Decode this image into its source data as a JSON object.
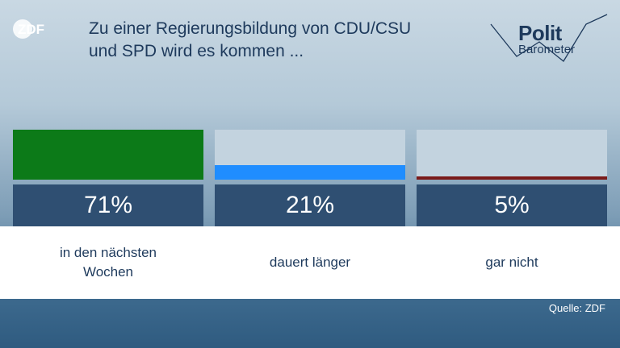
{
  "logo": "ZDF",
  "title_line1": "Zu einer Regierungsbildung von CDU/CSU",
  "title_line2": "und SPD wird es kommen ...",
  "brand": {
    "line1": "Polit",
    "line2": "Barometer"
  },
  "chart_data": {
    "type": "bar",
    "title": "Zu einer Regierungsbildung von CDU/CSU und SPD wird es kommen ...",
    "categories": [
      "in den nächsten Wochen",
      "dauert länger",
      "gar nicht"
    ],
    "category_lines": [
      [
        "in den nächsten",
        "Wochen"
      ],
      [
        "dauert länger"
      ],
      [
        "gar nicht"
      ]
    ],
    "values": [
      71,
      21,
      5
    ],
    "value_labels": [
      "71%",
      "21%",
      "5%"
    ],
    "colors": [
      "#0c7a18",
      "#1f8dff",
      "#7a1a1a"
    ],
    "ylim": [
      0,
      71
    ],
    "unit": "%"
  },
  "source": "Quelle: ZDF"
}
